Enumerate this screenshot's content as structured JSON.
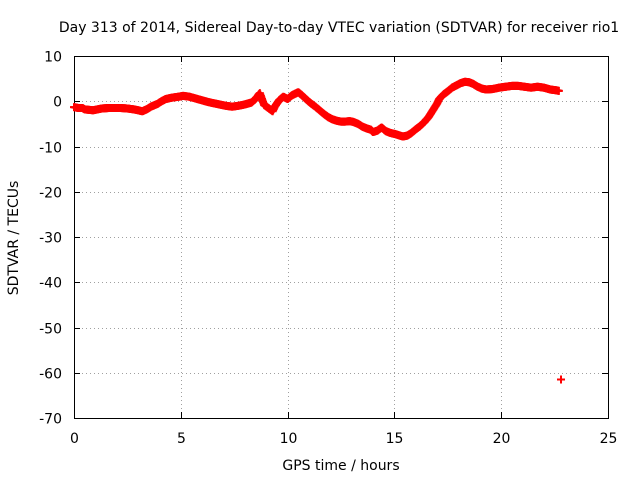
{
  "chart_data": {
    "type": "scatter",
    "title": "Day 313 of 2014, Sidereal Day-to-day VTEC variation (SDTVAR) for receiver rio1",
    "xlabel": "GPS time / hours",
    "ylabel": "SDTVAR / TECUs",
    "xlim": [
      0,
      25
    ],
    "ylim": [
      -70,
      10
    ],
    "xticks": [
      0,
      5,
      10,
      15,
      20,
      25
    ],
    "yticks": [
      10,
      0,
      -10,
      -20,
      -30,
      -40,
      -50,
      -60,
      -70
    ],
    "grid": true,
    "marker_color": "#ff0000",
    "marker": "plus",
    "series": [
      {
        "name": "SDTVAR",
        "x": [
          0.0,
          0.2,
          0.4,
          0.5,
          0.9,
          1.1,
          1.3,
          1.6,
          1.9,
          2.2,
          2.5,
          2.8,
          3.0,
          3.2,
          3.4,
          3.6,
          3.9,
          4.1,
          4.3,
          4.6,
          4.9,
          5.1,
          5.4,
          5.7,
          6.0,
          6.3,
          6.6,
          6.9,
          7.1,
          7.4,
          7.7,
          8.0,
          8.3,
          8.5,
          8.7,
          8.8,
          8.9,
          9.1,
          9.3,
          9.4,
          9.6,
          9.8,
          10.0,
          10.2,
          10.5,
          10.7,
          10.9,
          11.1,
          11.3,
          11.5,
          11.7,
          11.9,
          12.1,
          12.3,
          12.5,
          12.7,
          12.9,
          13.1,
          13.3,
          13.5,
          13.7,
          13.9,
          14.0,
          14.2,
          14.4,
          14.6,
          14.8,
          15.0,
          15.2,
          15.4,
          15.6,
          15.8,
          16.0,
          16.2,
          16.4,
          16.6,
          16.8,
          17.0,
          17.1,
          17.3,
          17.5,
          17.7,
          17.9,
          18.1,
          18.3,
          18.5,
          18.7,
          18.9,
          19.1,
          19.3,
          19.6,
          19.9,
          20.2,
          20.5,
          20.8,
          21.1,
          21.4,
          21.7,
          22.0,
          22.3,
          22.6,
          22.7,
          22.8
        ],
        "y": [
          -1.3,
          -1.5,
          -1.5,
          -1.8,
          -2.0,
          -1.8,
          -1.6,
          -1.5,
          -1.5,
          -1.5,
          -1.6,
          -1.8,
          -2.0,
          -2.2,
          -1.8,
          -1.2,
          -0.6,
          0.0,
          0.5,
          0.8,
          1.0,
          1.2,
          1.0,
          0.6,
          0.2,
          -0.2,
          -0.5,
          -0.8,
          -1.0,
          -1.2,
          -1.0,
          -0.7,
          -0.3,
          0.5,
          1.8,
          0.5,
          -0.8,
          -1.5,
          -2.2,
          -1.2,
          0.2,
          1.0,
          0.5,
          1.3,
          2.0,
          1.2,
          0.3,
          -0.5,
          -1.2,
          -2.0,
          -2.8,
          -3.5,
          -4.0,
          -4.3,
          -4.5,
          -4.5,
          -4.4,
          -4.6,
          -5.0,
          -5.6,
          -6.0,
          -6.3,
          -6.8,
          -6.5,
          -5.8,
          -6.6,
          -7.0,
          -7.2,
          -7.5,
          -7.8,
          -7.6,
          -7.0,
          -6.2,
          -5.5,
          -4.6,
          -3.5,
          -2.0,
          -0.5,
          0.5,
          1.5,
          2.2,
          3.0,
          3.5,
          4.0,
          4.3,
          4.2,
          3.8,
          3.2,
          2.8,
          2.6,
          2.7,
          3.0,
          3.2,
          3.4,
          3.4,
          3.2,
          3.0,
          3.2,
          3.0,
          2.6,
          2.4,
          2.3,
          -61.5
        ]
      }
    ]
  }
}
